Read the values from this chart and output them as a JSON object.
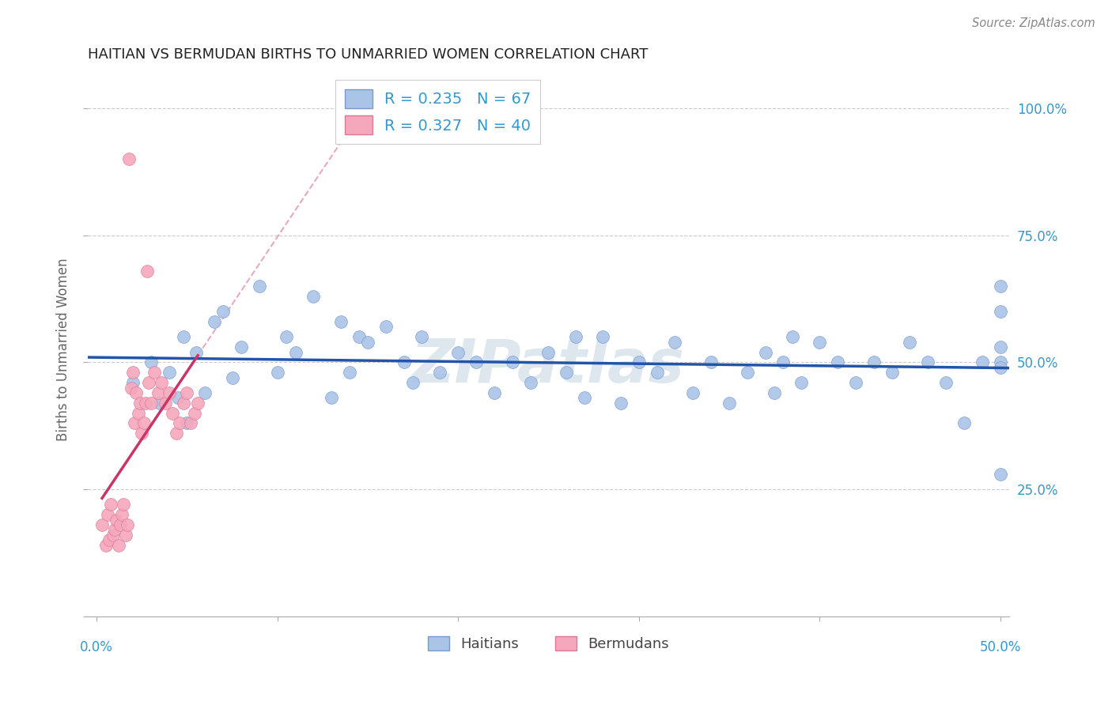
{
  "title": "HAITIAN VS BERMUDAN BIRTHS TO UNMARRIED WOMEN CORRELATION CHART",
  "source": "Source: ZipAtlas.com",
  "ylabel": "Births to Unmarried Women",
  "xlim": [
    -0.005,
    0.505
  ],
  "ylim": [
    0.0,
    1.05
  ],
  "yticks": [
    0.0,
    0.25,
    0.5,
    0.75,
    1.0
  ],
  "ytick_labels_right": [
    "",
    "25.0%",
    "50.0%",
    "75.0%",
    "100.0%"
  ],
  "xtick_label_left": "0.0%",
  "xtick_label_right": "50.0%",
  "haitian_R": 0.235,
  "haitian_N": 67,
  "bermudan_R": 0.327,
  "bermudan_N": 40,
  "haitian_color": "#aac4e8",
  "haitian_edge_color": "#7799cc",
  "bermudan_color": "#f5a8bc",
  "bermudan_edge_color": "#dd7799",
  "haitian_line_color": "#2255aa",
  "bermudan_line_color": "#cc3366",
  "bermudan_dash_color": "#e8aabb",
  "watermark_color": "#d0dde8",
  "haitian_x": [
    0.02,
    0.03,
    0.035,
    0.04,
    0.045,
    0.048,
    0.05,
    0.055,
    0.06,
    0.065,
    0.07,
    0.075,
    0.08,
    0.09,
    0.1,
    0.105,
    0.11,
    0.12,
    0.13,
    0.135,
    0.14,
    0.145,
    0.15,
    0.16,
    0.17,
    0.175,
    0.18,
    0.19,
    0.2,
    0.21,
    0.22,
    0.23,
    0.24,
    0.25,
    0.26,
    0.265,
    0.27,
    0.28,
    0.29,
    0.3,
    0.31,
    0.32,
    0.33,
    0.34,
    0.35,
    0.36,
    0.37,
    0.375,
    0.38,
    0.385,
    0.39,
    0.4,
    0.41,
    0.42,
    0.43,
    0.44,
    0.45,
    0.46,
    0.47,
    0.48,
    0.49,
    0.5,
    0.5,
    0.5,
    0.5,
    0.5,
    0.5
  ],
  "haitian_y": [
    0.46,
    0.5,
    0.42,
    0.48,
    0.43,
    0.55,
    0.38,
    0.52,
    0.44,
    0.58,
    0.6,
    0.47,
    0.53,
    0.65,
    0.48,
    0.55,
    0.52,
    0.63,
    0.43,
    0.58,
    0.48,
    0.55,
    0.54,
    0.57,
    0.5,
    0.46,
    0.55,
    0.48,
    0.52,
    0.5,
    0.44,
    0.5,
    0.46,
    0.52,
    0.48,
    0.55,
    0.43,
    0.55,
    0.42,
    0.5,
    0.48,
    0.54,
    0.44,
    0.5,
    0.42,
    0.48,
    0.52,
    0.44,
    0.5,
    0.55,
    0.46,
    0.54,
    0.5,
    0.46,
    0.5,
    0.48,
    0.54,
    0.5,
    0.46,
    0.38,
    0.5,
    0.53,
    0.28,
    0.6,
    0.65,
    0.5,
    0.49
  ],
  "bermudan_x": [
    0.003,
    0.005,
    0.006,
    0.007,
    0.008,
    0.009,
    0.01,
    0.011,
    0.012,
    0.013,
    0.014,
    0.015,
    0.016,
    0.017,
    0.018,
    0.019,
    0.02,
    0.021,
    0.022,
    0.023,
    0.024,
    0.025,
    0.026,
    0.027,
    0.028,
    0.029,
    0.03,
    0.032,
    0.034,
    0.036,
    0.038,
    0.04,
    0.042,
    0.044,
    0.046,
    0.048,
    0.05,
    0.052,
    0.054,
    0.056
  ],
  "bermudan_y": [
    0.18,
    0.14,
    0.2,
    0.15,
    0.22,
    0.16,
    0.17,
    0.19,
    0.14,
    0.18,
    0.2,
    0.22,
    0.16,
    0.18,
    0.9,
    0.45,
    0.48,
    0.38,
    0.44,
    0.4,
    0.42,
    0.36,
    0.38,
    0.42,
    0.68,
    0.46,
    0.42,
    0.48,
    0.44,
    0.46,
    0.42,
    0.44,
    0.4,
    0.36,
    0.38,
    0.42,
    0.44,
    0.38,
    0.4,
    0.42
  ]
}
